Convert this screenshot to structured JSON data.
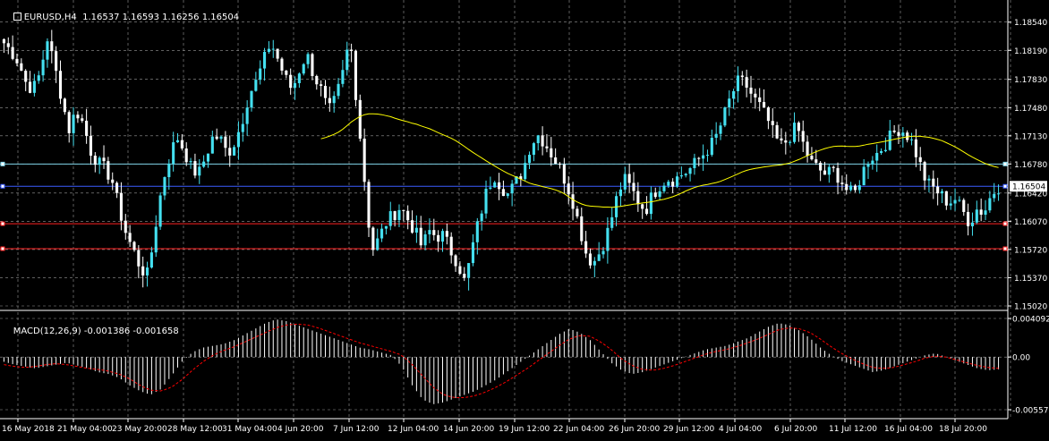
{
  "symbol_header": {
    "symbol": "EURUSD,H4",
    "quote": "1.16537 1.16593 1.16256 1.16504"
  },
  "macd_header": {
    "name": "MACD(12,26,9)",
    "values": "-0.001386 -0.001658"
  },
  "colors": {
    "background": "#000000",
    "grid": "#9a9a9a",
    "bull_candle": "#44e0f0",
    "bear_candle": "#ffffff",
    "moving_average": "#ffff00",
    "macd_histogram": "#ffffff",
    "macd_signal": "#ff0000",
    "hline_cyan": "#7fd4e8",
    "hline_blue": "#3a5cff",
    "hline_red": "#ff2020",
    "current_price_tag_bg": "#ffffff",
    "current_price_tag_text": "#000000"
  },
  "price_axis": {
    "labels": [
      "1.18540",
      "1.18190",
      "1.17830",
      "1.17480",
      "1.17130",
      "1.16780",
      "1.16420",
      "1.16070",
      "1.15720",
      "1.15370",
      "1.15020"
    ],
    "current_price": "1.16504"
  },
  "macd_axis": {
    "labels": [
      "0.004092",
      "0.00",
      "-0.005576"
    ]
  },
  "time_axis": {
    "labels": [
      "16 May 2018",
      "21 May 04:00",
      "23 May 20:00",
      "28 May 12:00",
      "31 May 04:00",
      "4 Jun 20:00",
      "7 Jun 12:00",
      "12 Jun 04:00",
      "14 Jun 20:00",
      "19 Jun 12:00",
      "22 Jun 04:00",
      "26 Jun 20:00",
      "29 Jun 12:00",
      "4 Jul 04:00",
      "6 Jul 20:00",
      "11 Jul 12:00",
      "16 Jul 04:00",
      "18 Jul 20:00"
    ]
  },
  "horizontal_lines": {
    "cyan_level": 1.1678,
    "blue_level": 1.16504,
    "red_level_1": 1.1604,
    "red_level_2": 1.1573
  },
  "chart_data": [
    {
      "type": "candlestick",
      "title": "EURUSD,H4",
      "ylim": [
        1.1502,
        1.1877
      ],
      "bars": 230,
      "waypoints_close": [
        1.1828,
        1.1818,
        1.1805,
        1.178,
        1.177,
        1.179,
        1.1835,
        1.18,
        1.176,
        1.172,
        1.1745,
        1.1728,
        1.1695,
        1.168,
        1.1672,
        1.1658,
        1.1622,
        1.159,
        1.157,
        1.1548,
        1.154,
        1.16,
        1.1655,
        1.1688,
        1.1712,
        1.1695,
        1.1672,
        1.1665,
        1.1688,
        1.1712,
        1.171,
        1.169,
        1.1705,
        1.173,
        1.1765,
        1.178,
        1.1805,
        1.183,
        1.1808,
        1.1785,
        1.177,
        1.1795,
        1.1815,
        1.1788,
        1.177,
        1.1742,
        1.1758,
        1.179,
        1.1835,
        1.175,
        1.166,
        1.157,
        1.1585,
        1.1605,
        1.1615,
        1.1625,
        1.161,
        1.1595,
        1.1575,
        1.1595,
        1.1588,
        1.159,
        1.157,
        1.1555,
        1.153,
        1.1575,
        1.1612,
        1.1645,
        1.1665,
        1.165,
        1.164,
        1.1655,
        1.167,
        1.17,
        1.1715,
        1.1705,
        1.169,
        1.1675,
        1.1655,
        1.163,
        1.1595,
        1.156,
        1.1558,
        1.1575,
        1.16,
        1.1635,
        1.166,
        1.1648,
        1.1632,
        1.162,
        1.164,
        1.1652,
        1.166,
        1.1658,
        1.1665,
        1.167,
        1.168,
        1.169,
        1.17,
        1.1715,
        1.174,
        1.1765,
        1.1782,
        1.1775,
        1.176,
        1.1748,
        1.1732,
        1.171,
        1.17,
        1.1712,
        1.1725,
        1.17,
        1.168,
        1.1672,
        1.1665,
        1.167,
        1.166,
        1.1645,
        1.164,
        1.1665,
        1.1685,
        1.169,
        1.17,
        1.1712,
        1.1722,
        1.1718,
        1.1705,
        1.168,
        1.1655,
        1.1648,
        1.164,
        1.163,
        1.1635,
        1.162,
        1.1605,
        1.1622,
        1.1618,
        1.164,
        1.165
      ],
      "ma_period_label": "",
      "ma_visible_from_fraction": 0.32
    },
    {
      "type": "bar",
      "title": "MACD(12,26,9)",
      "ylim": [
        -0.005576,
        0.004092
      ],
      "histogram_waypoints": [
        -0.0005,
        -0.0008,
        -0.001,
        -0.0012,
        -0.001,
        -0.0008,
        -0.0006,
        -0.0009,
        -0.0012,
        -0.0016,
        -0.0018,
        -0.0022,
        -0.003,
        -0.0036,
        -0.004,
        -0.0034,
        -0.002,
        -0.0005,
        0.0005,
        0.001,
        0.0012,
        0.0014,
        0.0018,
        0.0024,
        0.003,
        0.0036,
        0.004,
        0.0038,
        0.0034,
        0.003,
        0.0026,
        0.0022,
        0.0018,
        0.0014,
        0.001,
        0.0008,
        0.0005,
        0.0002,
        -0.001,
        -0.003,
        -0.0045,
        -0.005,
        -0.0048,
        -0.0044,
        -0.004,
        -0.0036,
        -0.003,
        -0.0024,
        -0.0016,
        -0.0008,
        0.0,
        0.0008,
        0.0016,
        0.0024,
        0.003,
        0.0026,
        0.0018,
        0.0006,
        -0.0006,
        -0.0014,
        -0.0018,
        -0.0016,
        -0.0012,
        -0.0008,
        -0.0004,
        0.0,
        0.0004,
        0.0008,
        0.001,
        0.0012,
        0.0016,
        0.002,
        0.0026,
        0.0032,
        0.0036,
        0.0034,
        0.0028,
        0.002,
        0.001,
        0.0002,
        -0.0004,
        -0.0008,
        -0.0012,
        -0.0016,
        -0.0014,
        -0.001,
        -0.0006,
        -0.0002,
        0.0002,
        0.0004,
        0.0,
        -0.0004,
        -0.0008,
        -0.0012,
        -0.0014,
        -0.0013
      ],
      "signal_waypoints": [
        -0.0008,
        -0.001,
        -0.0011,
        -0.001,
        -0.0008,
        -0.0007,
        -0.0008,
        -0.001,
        -0.0012,
        -0.0013,
        -0.0015,
        -0.0018,
        -0.0023,
        -0.003,
        -0.0035,
        -0.0036,
        -0.0032,
        -0.0024,
        -0.0014,
        -0.0005,
        0.0002,
        0.0007,
        0.0011,
        0.0016,
        0.0021,
        0.0026,
        0.0031,
        0.0034,
        0.0035,
        0.0034,
        0.0031,
        0.0027,
        0.0023,
        0.0019,
        0.0015,
        0.0012,
        0.0009,
        0.0006,
        0.0002,
        -0.0008,
        -0.002,
        -0.0032,
        -0.004,
        -0.0043,
        -0.0043,
        -0.0041,
        -0.0037,
        -0.0032,
        -0.0026,
        -0.0019,
        -0.0012,
        -0.0004,
        0.0004,
        0.0012,
        0.0019,
        0.0023,
        0.0022,
        0.0016,
        0.0008,
        -0.0002,
        -0.0009,
        -0.0013,
        -0.0014,
        -0.0012,
        -0.0009,
        -0.0005,
        -0.0001,
        0.0003,
        0.0006,
        0.0008,
        0.0011,
        0.0015,
        0.0019,
        0.0024,
        0.0029,
        0.0031,
        0.003,
        0.0026,
        0.0019,
        0.0011,
        0.0004,
        -0.0002,
        -0.0007,
        -0.0011,
        -0.0012,
        -0.0011,
        -0.0008,
        -0.0005,
        -0.0001,
        0.0001,
        0.0,
        -0.0003,
        -0.0006,
        -0.0009,
        -0.0011,
        -0.0012
      ]
    }
  ]
}
